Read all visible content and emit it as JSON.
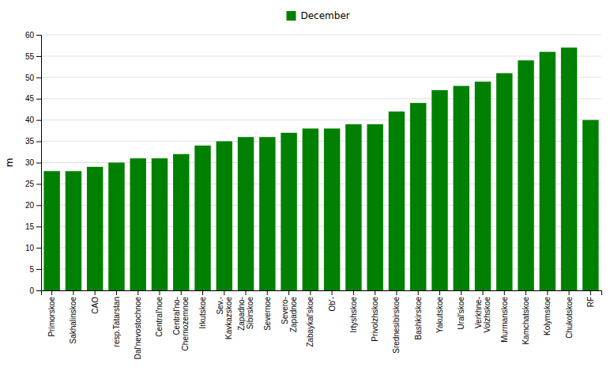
{
  "chart_data": {
    "type": "bar",
    "categories": [
      "Primorskoe",
      "Sakhalinskoe",
      "CAO",
      "resp.Tatarstan",
      "Dal'nevostochnoe",
      "Central'noe",
      "Central'no-\nChernozemnoe",
      "Irkutskoe",
      "Sev.-\nKavkazskoe",
      "Zapadno-\nSibirskoe",
      "Severnoe",
      "Severo-\nZapadnoe",
      "Zabaykal'skoe",
      "Ob'-",
      "Irtyshskoe",
      "Privolzhskoe",
      "Srednesibirskoe",
      "Bashkirskoe",
      "Yakutskoe",
      "Ural'skoe",
      "Verkhne-\nVolzhskoe",
      "Murmanskoe",
      "Kamchatskoe",
      "Kolymskoe",
      "Chukotskoe",
      "RF"
    ],
    "series": [
      {
        "name": "December",
        "color": "#008000",
        "values": [
          28,
          28,
          29,
          30,
          31,
          31,
          32,
          34,
          35,
          36,
          36,
          37,
          38,
          38,
          39,
          39,
          42,
          44,
          47,
          48,
          49,
          51,
          54,
          56,
          57,
          40
        ]
      }
    ],
    "ylabel": "m",
    "ylim": [
      0,
      60
    ],
    "yticks": [
      0,
      5,
      10,
      15,
      20,
      25,
      30,
      35,
      40,
      45,
      50,
      55,
      60
    ],
    "grid": true,
    "legend": "top"
  }
}
